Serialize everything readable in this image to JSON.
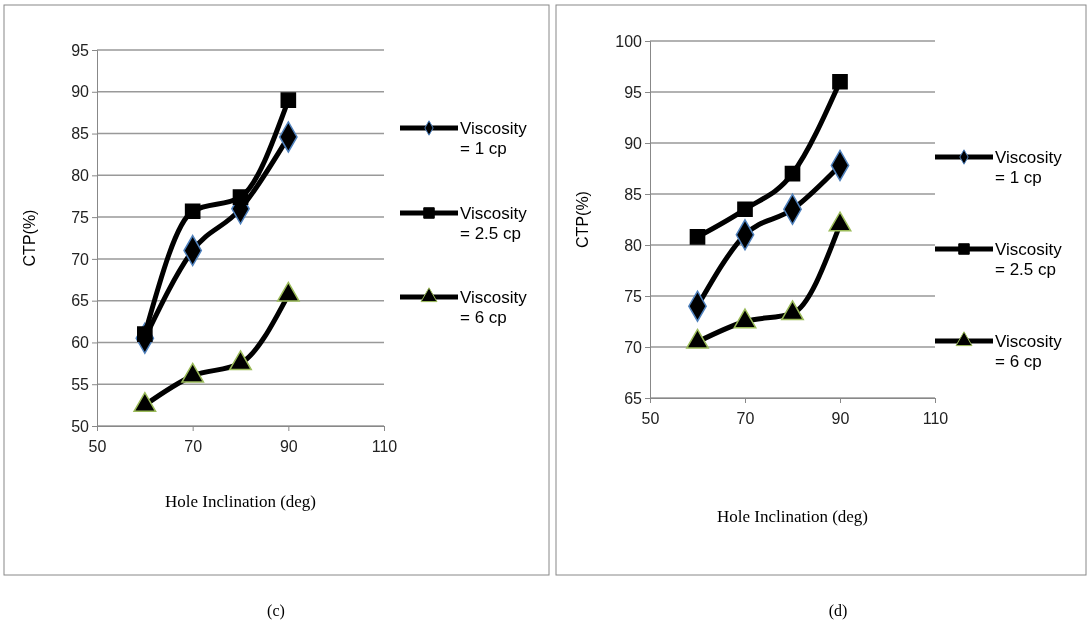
{
  "chart_data": [
    {
      "type": "line",
      "xlabel": "Hole Inclination (deg)",
      "ylabel": "CTP(%)",
      "x": [
        60,
        70,
        80,
        90
      ],
      "xlim": [
        50,
        110
      ],
      "xticks": [
        50,
        70,
        90,
        110
      ],
      "ylim": [
        50,
        95
      ],
      "yticks": [
        50,
        55,
        60,
        65,
        70,
        75,
        80,
        85,
        90,
        95
      ],
      "grid": "y",
      "legend": "right",
      "annotations": [
        "(c)"
      ],
      "series": [
        {
          "name": "Viscosity = 1 cp",
          "color": "#000000",
          "marker": "diamond",
          "values": [
            60.5,
            71,
            76,
            84.6
          ]
        },
        {
          "name": "Viscosity = 2.5 cp",
          "color": "#000000",
          "marker": "square",
          "values": [
            61,
            75.7,
            77.4,
            89
          ]
        },
        {
          "name": "Viscosity = 6 cp",
          "color": "#000000",
          "marker": "triangle",
          "values": [
            52.5,
            56,
            57.5,
            65.7
          ]
        }
      ]
    },
    {
      "type": "line",
      "xlabel": "Hole Inclination (deg)",
      "ylabel": "CTP(%)",
      "x": [
        60,
        70,
        80,
        90
      ],
      "xlim": [
        50,
        110
      ],
      "xticks": [
        50,
        70,
        90,
        110
      ],
      "ylim": [
        65,
        100
      ],
      "yticks": [
        65,
        70,
        75,
        80,
        85,
        90,
        95,
        100
      ],
      "grid": "y",
      "legend": "right",
      "annotations": [
        "(d)"
      ],
      "series": [
        {
          "name": "Viscosity = 1 cp",
          "color": "#000000",
          "marker": "diamond",
          "values": [
            74,
            81,
            83.5,
            87.8
          ]
        },
        {
          "name": "Viscosity = 2.5 cp",
          "color": "#000000",
          "marker": "square",
          "values": [
            80.8,
            83.5,
            87,
            96
          ]
        },
        {
          "name": "Viscosity = 6 cp",
          "color": "#000000",
          "marker": "triangle",
          "values": [
            70.5,
            72.5,
            73.3,
            82
          ]
        }
      ]
    }
  ]
}
